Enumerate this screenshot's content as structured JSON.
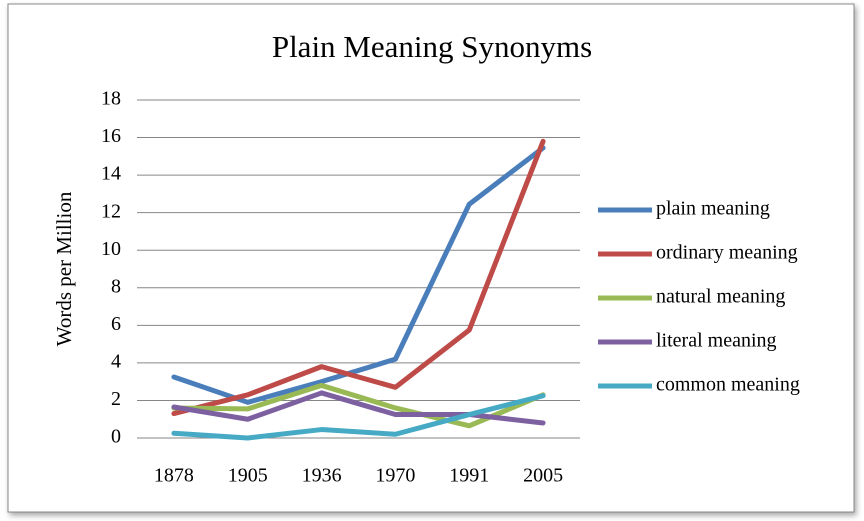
{
  "chart_data": {
    "type": "line",
    "title": "Plain Meaning Synonyms",
    "y_label": "Words per Million",
    "categories": [
      "1878",
      "1905",
      "1936",
      "1970",
      "1991",
      "2005"
    ],
    "series": [
      {
        "name": "plain meaning",
        "color": "#4a7ebb",
        "values": [
          3.25,
          1.9,
          3.0,
          4.2,
          12.45,
          15.45
        ]
      },
      {
        "name": "ordinary meaning",
        "color": "#be4b48",
        "values": [
          1.3,
          2.3,
          3.8,
          2.7,
          5.75,
          15.8
        ]
      },
      {
        "name": "natural meaning",
        "color": "#98b954",
        "values": [
          1.6,
          1.55,
          2.8,
          1.6,
          0.65,
          2.3
        ]
      },
      {
        "name": "literal meaning",
        "color": "#7d60a0",
        "values": [
          1.65,
          1.0,
          2.4,
          1.25,
          1.25,
          0.8
        ]
      },
      {
        "name": "common meaning",
        "color": "#46aac5",
        "values": [
          0.25,
          0.0,
          0.45,
          0.2,
          1.25,
          2.25
        ]
      }
    ],
    "ylim": [
      0,
      18
    ],
    "yticks": [
      0,
      2,
      4,
      6,
      8,
      10,
      12,
      14,
      16,
      18
    ],
    "grid": true,
    "legend": "right"
  }
}
